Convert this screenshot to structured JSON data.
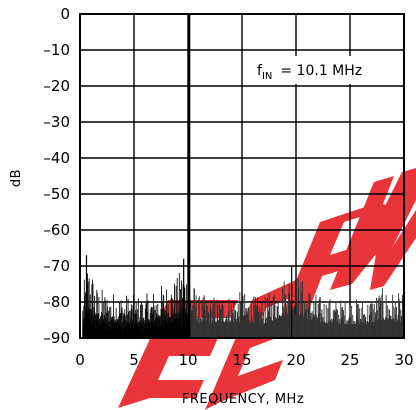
{
  "chart_data": {
    "type": "line",
    "title": "",
    "xlabel": "FREQUENCY, MHz",
    "ylabel": "dB",
    "xlim": [
      0,
      30
    ],
    "ylim": [
      -90,
      0
    ],
    "xticks": [
      "0",
      "5",
      "10",
      "15",
      "20",
      "25",
      "30"
    ],
    "yticks": [
      "0",
      "-10",
      "-20",
      "-30",
      "-40",
      "-50",
      "-60",
      "-70",
      "-80",
      "-90"
    ],
    "grid": true,
    "annotation": {
      "main": "f",
      "sub": "IN",
      "rest": "= 10.1 MHz"
    },
    "fundamental": {
      "x": 10.1,
      "y": 0
    },
    "noise_floor_db": -90,
    "spur_envelope": [
      {
        "x": 0.3,
        "y": -77
      },
      {
        "x": 0.6,
        "y": -67
      },
      {
        "x": 1.0,
        "y": -69
      },
      {
        "x": 1.5,
        "y": -75
      },
      {
        "x": 2.5,
        "y": -77
      },
      {
        "x": 3.5,
        "y": -77
      },
      {
        "x": 5.0,
        "y": -78
      },
      {
        "x": 6.0,
        "y": -78
      },
      {
        "x": 7.5,
        "y": -75
      },
      {
        "x": 9.0,
        "y": -73
      },
      {
        "x": 9.6,
        "y": -68
      },
      {
        "x": 11.0,
        "y": -78
      },
      {
        "x": 13.0,
        "y": -78
      },
      {
        "x": 15.0,
        "y": -77
      },
      {
        "x": 17.0,
        "y": -79
      },
      {
        "x": 19.6,
        "y": -70
      },
      {
        "x": 22.0,
        "y": -78
      },
      {
        "x": 24.0,
        "y": -79
      },
      {
        "x": 26.5,
        "y": -79
      },
      {
        "x": 28.0,
        "y": -76
      },
      {
        "x": 30.0,
        "y": -78
      }
    ],
    "spurs": [
      {
        "x": 0.6,
        "y": -67
      },
      {
        "x": 9.6,
        "y": -68
      },
      {
        "x": 19.6,
        "y": -70
      }
    ]
  },
  "watermark": {
    "text": "EEPW",
    "color": "#e8262c"
  }
}
